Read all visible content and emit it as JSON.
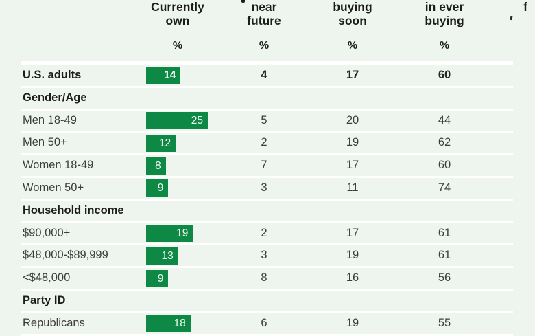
{
  "colors": {
    "background": "#eef4ee",
    "bar_green": "#0d8845",
    "separator_white": "#ffffff",
    "text_bold": "#1c1c1c",
    "text_regular": "#3d3d3d",
    "bar_label_text": "#ffffff"
  },
  "header": {
    "columns": [
      {
        "id": "currently-own",
        "lines": [
          "Currently",
          "own"
        ],
        "unit": "%"
      },
      {
        "id": "near-future",
        "lines": [
          "near",
          "future"
        ],
        "unit": "%"
      },
      {
        "id": "buying-soon",
        "lines": [
          "buying",
          "soon"
        ],
        "unit": "%"
      },
      {
        "id": "in-ever-buying",
        "lines": [
          "in ever",
          "buying"
        ],
        "unit": "%"
      },
      {
        "id": "truncated-right",
        "lines": [
          "f"
        ],
        "unit": ""
      }
    ]
  },
  "rows": [
    {
      "kind": "data",
      "label": "U.S. adults",
      "emphasis": true,
      "bar": 14,
      "values": [
        4,
        17,
        60
      ]
    },
    {
      "kind": "section",
      "label": "Gender/Age"
    },
    {
      "kind": "data",
      "label": "Men 18-49",
      "bar": 25,
      "values": [
        5,
        20,
        44
      ]
    },
    {
      "kind": "data",
      "label": "Men 50+",
      "bar": 12,
      "values": [
        2,
        19,
        62
      ]
    },
    {
      "kind": "data",
      "label": "Women 18-49",
      "bar": 8,
      "values": [
        7,
        17,
        60
      ]
    },
    {
      "kind": "data",
      "label": "Women 50+",
      "bar": 9,
      "values": [
        3,
        11,
        74
      ]
    },
    {
      "kind": "section",
      "label": "Household income"
    },
    {
      "kind": "data",
      "label": "$90,000+",
      "bar": 19,
      "values": [
        2,
        17,
        61
      ]
    },
    {
      "kind": "data",
      "label": "$48,000-$89,999",
      "bar": 13,
      "values": [
        3,
        19,
        61
      ]
    },
    {
      "kind": "data",
      "label": "<$48,000",
      "bar": 9,
      "values": [
        8,
        16,
        56
      ]
    },
    {
      "kind": "section",
      "label": "Party ID"
    },
    {
      "kind": "data",
      "label": "Republicans",
      "bar": 18,
      "values": [
        6,
        19,
        55
      ],
      "clipped": true
    }
  ],
  "chart_data": {
    "type": "table",
    "title": "",
    "columns": [
      "Currently own",
      "near future",
      "buying soon",
      "in ever buying"
    ],
    "unit": "%",
    "bar_column_index": 0,
    "bar_color": "#0d8845",
    "groups": [
      {
        "group": "",
        "rows": [
          {
            "label": "U.S. adults",
            "values": [
              14,
              4,
              17,
              60
            ]
          }
        ]
      },
      {
        "group": "Gender/Age",
        "rows": [
          {
            "label": "Men 18-49",
            "values": [
              25,
              5,
              20,
              44
            ]
          },
          {
            "label": "Men 50+",
            "values": [
              12,
              2,
              19,
              62
            ]
          },
          {
            "label": "Women 18-49",
            "values": [
              8,
              7,
              17,
              60
            ]
          },
          {
            "label": "Women 50+",
            "values": [
              9,
              3,
              11,
              74
            ]
          }
        ]
      },
      {
        "group": "Household income",
        "rows": [
          {
            "label": "$90,000+",
            "values": [
              19,
              2,
              17,
              61
            ]
          },
          {
            "label": "$48,000-$89,999",
            "values": [
              13,
              3,
              19,
              61
            ]
          },
          {
            "label": "<$48,000",
            "values": [
              9,
              8,
              16,
              56
            ]
          }
        ]
      },
      {
        "group": "Party ID",
        "rows": [
          {
            "label": "Republicans",
            "values": [
              18,
              6,
              19,
              55
            ]
          }
        ]
      }
    ]
  }
}
